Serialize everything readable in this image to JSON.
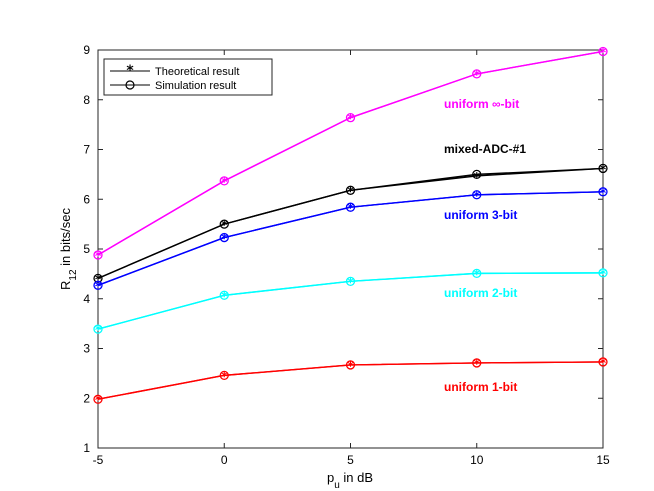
{
  "chart_data": {
    "type": "line",
    "title": "",
    "xlabel": "p",
    "xlabel_sub": "u",
    "xlabel_rest": " in dB",
    "ylabel": "R",
    "ylabel_sub": "12",
    "ylabel_rest": " in bits/sec",
    "x": [
      -5,
      0,
      5,
      10,
      15
    ],
    "xlim": [
      -5,
      15
    ],
    "ylim": [
      1,
      9
    ],
    "xticks": [
      "-5",
      "0",
      "5",
      "10",
      "15"
    ],
    "yticks": [
      "1",
      "2",
      "3",
      "4",
      "5",
      "6",
      "7",
      "8",
      "9"
    ],
    "grid": false,
    "legend": {
      "placement": "top-left",
      "entries": [
        {
          "name": "Theoretical result",
          "marker": "star",
          "color": "#000000"
        },
        {
          "name": "Simulation result",
          "marker": "circle",
          "color": "#000000"
        }
      ]
    },
    "series": [
      {
        "label": "uniform ∞-bit",
        "color": "#ff00ff",
        "theoretical": [
          4.88,
          6.37,
          7.64,
          8.52,
          8.97
        ],
        "simulation": [
          4.88,
          6.37,
          7.64,
          8.52,
          8.97
        ]
      },
      {
        "label": "mixed-ADC-#1",
        "color": "#000000",
        "theoretical": [
          4.41,
          5.5,
          6.18,
          6.47,
          6.62
        ],
        "simulation": [
          4.41,
          5.5,
          6.18,
          6.5,
          6.62
        ]
      },
      {
        "label": "uniform 3-bit",
        "color": "#0000ff",
        "theoretical": [
          4.27,
          5.23,
          5.84,
          6.09,
          6.15
        ],
        "simulation": [
          4.27,
          5.23,
          5.84,
          6.09,
          6.15
        ]
      },
      {
        "label": "uniform 2-bit",
        "color": "#00ffff",
        "theoretical": [
          3.39,
          4.07,
          4.35,
          4.51,
          4.52
        ],
        "simulation": [
          3.39,
          4.07,
          4.35,
          4.51,
          4.52
        ]
      },
      {
        "label": "uniform 1-bit",
        "color": "#ff0000",
        "theoretical": [
          1.98,
          2.46,
          2.67,
          2.71,
          2.73
        ],
        "simulation": [
          1.98,
          2.46,
          2.67,
          2.71,
          2.73
        ]
      }
    ]
  }
}
